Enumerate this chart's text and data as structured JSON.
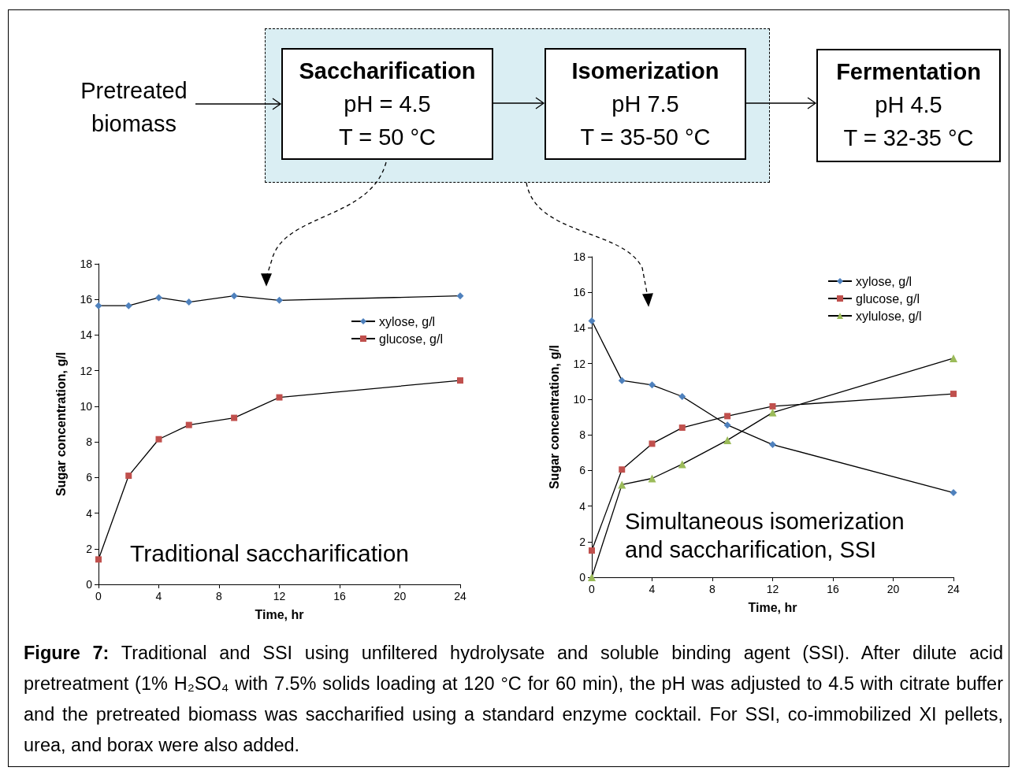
{
  "chart_data": [
    {
      "type": "other",
      "annotations": [
        "Pretreated biomass",
        "Saccharification",
        "pH = 4.5",
        "T = 50 °C",
        "Isomerization",
        "pH 7.5",
        "T = 35-50 °C",
        "Fermentation",
        "pH 4.5",
        "T = 32-35 °C"
      ]
    },
    {
      "type": "line",
      "xlabel": "Time, hr",
      "ylabel": "Sugar concentration, g/l",
      "x": [
        0,
        2,
        4,
        6,
        9,
        12,
        24
      ],
      "xlim": [
        0,
        24
      ],
      "xticks": [
        0,
        4,
        8,
        12,
        16,
        20,
        24
      ],
      "ylim": [
        0,
        18
      ],
      "yticks": [
        0,
        2,
        4,
        6,
        8,
        10,
        12,
        14,
        16,
        18
      ],
      "grid": false,
      "legend": "top right",
      "series": [
        {
          "name": "xylose, g/l",
          "color": "#4f81bd",
          "marker": "diamond",
          "values": [
            15.65,
            15.65,
            16.1,
            15.85,
            16.2,
            15.95,
            16.2
          ]
        },
        {
          "name": "glucose, g/l",
          "color": "#c0504d",
          "marker": "square",
          "values": [
            1.4,
            6.1,
            8.15,
            8.95,
            9.35,
            10.5,
            11.45
          ]
        }
      ],
      "annotations": [
        "Traditional saccharification"
      ]
    },
    {
      "type": "line",
      "xlabel": "Time, hr",
      "ylabel": "Sugar concentration, g/l",
      "x": [
        0,
        2,
        4,
        6,
        9,
        12,
        24
      ],
      "xlim": [
        0,
        24
      ],
      "xticks": [
        0,
        4,
        8,
        12,
        16,
        20,
        24
      ],
      "ylim": [
        0,
        18
      ],
      "yticks": [
        0,
        2,
        4,
        6,
        8,
        10,
        12,
        14,
        16,
        18
      ],
      "grid": false,
      "legend": "top right",
      "series": [
        {
          "name": "xylose, g/l",
          "color": "#4f81bd",
          "marker": "diamond",
          "values": [
            14.4,
            11.05,
            10.8,
            10.15,
            8.55,
            7.45,
            4.75
          ]
        },
        {
          "name": "glucose, g/l",
          "color": "#c0504d",
          "marker": "square",
          "values": [
            1.5,
            6.05,
            7.5,
            8.4,
            9.05,
            9.6,
            10.3
          ]
        },
        {
          "name": "xylulose, g/l",
          "color": "#9bbb59",
          "marker": "triangle",
          "values": [
            0,
            5.2,
            5.55,
            6.35,
            7.7,
            9.25,
            12.3
          ]
        }
      ],
      "annotations": [
        "Simultaneous isomerization\nand saccharification, SSI",
        "Figure 7: Traditional and SSI using unfiltered hydrolysate and soluble binding agent (SSI). After dilute acid pretreatment (1% H₂SO₄ with 7.5% solids loading at 120 °C for 60 min), the pH was adjusted to 4.5 with citrate buffer and the pretreated biomass was saccharified using a standard enzyme cocktail. For SSI, co-immobilized XI pellets, urea, and borax were also added."
      ]
    }
  ]
}
